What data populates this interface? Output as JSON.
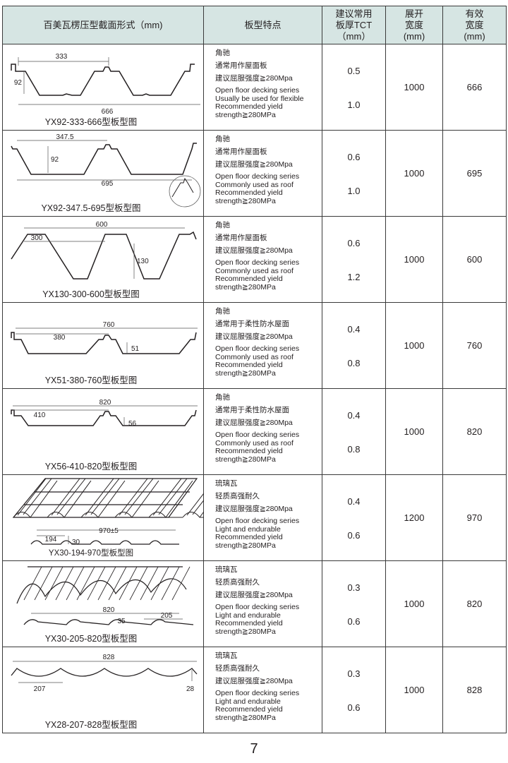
{
  "header": {
    "col1": "百美瓦楞压型截面形式（mm)",
    "col2": "板型特点",
    "col3": [
      "建议常用",
      "板厚TCT",
      "（mm）"
    ],
    "col4": [
      "展开",
      "宽度",
      "(mm)"
    ],
    "col5": [
      "有效",
      "宽度",
      "(mm)"
    ]
  },
  "rows": [
    {
      "caption": "YX92-333-666型板型图",
      "dims": [
        "333",
        "92",
        "666"
      ],
      "features": [
        "角驰",
        "通常用作屋面板",
        "建议屈服强度≧280Mpa"
      ],
      "en": [
        "Open floor decking series",
        "Usually be used for flexible",
        "Recommended  yield",
        "strength≧280MPa"
      ],
      "thickness": [
        "0.5",
        "1.0"
      ],
      "unfold": "1000",
      "effective": "666"
    },
    {
      "caption": "YX92-347.5-695型板型图",
      "dims": [
        "347.5",
        "92",
        "695"
      ],
      "features": [
        "角驰",
        "通常用作屋面板",
        "建议屈服强度≧280Mpa"
      ],
      "en": [
        "Open floor decking series",
        "Commonly used as roof",
        "Recommended  yield",
        "strength≧280MPa"
      ],
      "thickness": [
        "0.6",
        "1.0"
      ],
      "unfold": "1000",
      "effective": "695"
    },
    {
      "caption": "YX130-300-600型板型图",
      "dims": [
        "600",
        "300",
        "130"
      ],
      "features": [
        "角驰",
        "通常用作屋面板",
        "建议屈服强度≧280Mpa"
      ],
      "en": [
        "Open floor decking series",
        "Commonly used as roof",
        "Recommended  yield",
        "strength≧280MPa"
      ],
      "thickness": [
        "0.6",
        "1.2"
      ],
      "unfold": "1000",
      "effective": "600"
    },
    {
      "caption": "YX51-380-760型板型图",
      "dims": [
        "760",
        "380",
        "51"
      ],
      "features": [
        "角驰",
        "通常用于柔性防水屋面",
        "建议屈服强度≧280Mpa"
      ],
      "en": [
        "Open floor decking series",
        "Commonly used as roof",
        "Recommended  yield",
        "strength≧280MPa"
      ],
      "thickness": [
        "0.4",
        "0.8"
      ],
      "unfold": "1000",
      "effective": "760"
    },
    {
      "caption": "YX56-410-820型板型图",
      "dims": [
        "820",
        "410",
        "56"
      ],
      "features": [
        "角驰",
        "通常用于柔性防水屋面",
        "建议屈服强度≧280Mpa"
      ],
      "en": [
        "Open floor decking series",
        "Commonly used as roof",
        "Recommended  yield",
        "strength≧280MPa"
      ],
      "thickness": [
        "0.4",
        "0.8"
      ],
      "unfold": "1000",
      "effective": "820"
    },
    {
      "caption": "YX30-194-970型板型图",
      "dims": [
        "970±5",
        "194",
        "30"
      ],
      "features": [
        "琉璃瓦",
        "轻质高强耐久",
        "建议屈服强度≧280Mpa"
      ],
      "en": [
        "Open floor decking series",
        "Light and endurable",
        "Recommended  yield",
        "strength≧280MPa"
      ],
      "thickness": [
        "0.4",
        "0.6"
      ],
      "unfold": "1200",
      "effective": "970"
    },
    {
      "caption": "YX30-205-820型板型图",
      "dims": [
        "820",
        "35",
        "205"
      ],
      "features": [
        "琉璃瓦",
        "轻质高强耐久",
        "建议屈服强度≧280Mpa"
      ],
      "en": [
        "Open floor decking series",
        "Light and endurable",
        "Recommended  yield",
        "strength≧280MPa"
      ],
      "thickness": [
        "0.3",
        "0.6"
      ],
      "unfold": "1000",
      "effective": "820"
    },
    {
      "caption": "YX28-207-828型板型图",
      "dims": [
        "828",
        "207",
        "28"
      ],
      "features": [
        "琉璃瓦",
        "轻质高强耐久",
        "建议屈服强度≧280Mpa"
      ],
      "en": [
        "Open floor decking series",
        "Light and endurable",
        "Recommended  yield",
        "strength≧280MPa"
      ],
      "thickness": [
        "0.3",
        "0.6"
      ],
      "unfold": "1000",
      "effective": "828"
    }
  ],
  "page_number": "7"
}
